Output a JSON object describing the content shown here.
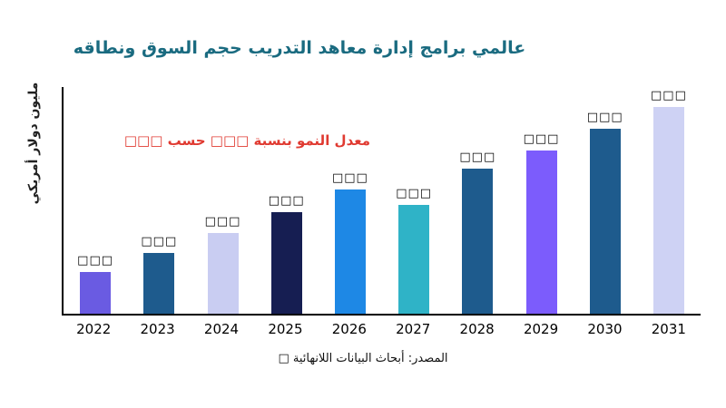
{
  "title": "عالمي برامج إدارة معاهد التدريب حجم السوق ونطاقه",
  "annotation": "معدل النمو بنسبة □□□ حسب □□□",
  "source": "المصدر: أبحاث البيانات اللانهائية □",
  "colors": {
    "title": "#1a6b80",
    "annotation": "#e03a31"
  },
  "chart_data": {
    "type": "bar",
    "title": "عالمي برامج إدارة معاهد التدريب حجم السوق ونطاقه",
    "xlabel": "",
    "ylabel": "مليون دولار أمريكي",
    "categories": [
      "2022",
      "2023",
      "2024",
      "2025",
      "2026",
      "2027",
      "2028",
      "2029",
      "2030",
      "2031"
    ],
    "values": [
      46,
      67,
      89,
      112,
      137,
      120,
      160,
      180,
      204,
      228
    ],
    "value_labels": [
      "□□□",
      "□□□",
      "□□□",
      "□□□",
      "□□□",
      "□□□",
      "□□□",
      "□□□",
      "□□□",
      "□□□"
    ],
    "bar_colors": [
      "#6a5be2",
      "#1e5b8d",
      "#c9cdf2",
      "#161e52",
      "#1e88e5",
      "#2fb3c7",
      "#1e5b8d",
      "#7c5cfc",
      "#1e5b8d",
      "#ced2f4"
    ],
    "value_axis_note": "no numeric ticks shown; values are relative heights estimated in pixels",
    "grid": false,
    "legend": "none",
    "annotation_text": "معدل النمو بنسبة □□□ حسب □□□",
    "source_text": "المصدر: أبحاث البيانات اللانهائية □"
  }
}
